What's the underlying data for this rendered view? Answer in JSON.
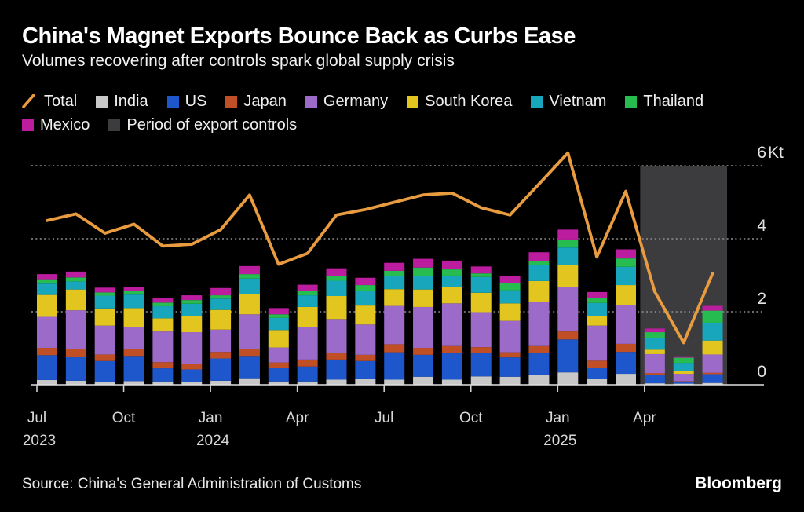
{
  "header": {
    "title": "China's Magnet Exports Bounce Back as Curbs Ease",
    "subtitle": "Volumes recovering after controls spark global supply crisis"
  },
  "legend": {
    "rows": [
      [
        {
          "label": "Total",
          "color": "#E99C3F",
          "swatch": "line"
        },
        {
          "label": "India",
          "color": "#C8C8C8",
          "swatch": "square"
        },
        {
          "label": "US",
          "color": "#1E56CB",
          "swatch": "square"
        },
        {
          "label": "Japan",
          "color": "#C14F26",
          "swatch": "square"
        },
        {
          "label": "Germany",
          "color": "#9C6BC9",
          "swatch": "square"
        },
        {
          "label": "South Korea",
          "color": "#E2C51E",
          "swatch": "square"
        },
        {
          "label": "Vietnam",
          "color": "#17A6BB",
          "swatch": "square"
        },
        {
          "label": "Thailand",
          "color": "#27BC4F",
          "swatch": "square"
        }
      ],
      [
        {
          "label": "Mexico",
          "color": "#BC1C9E",
          "swatch": "square"
        },
        {
          "label": "Period of export controls",
          "color": "#3C3C3E",
          "swatch": "square"
        }
      ]
    ]
  },
  "footer": {
    "source": "Source: China's General Administration of Customs",
    "brand": "Bloomberg"
  },
  "chart_data": {
    "type": "bar",
    "subtype": "stacked-bars-with-line",
    "unit": "Kt",
    "grid": "dashed-horizontal",
    "ylim": [
      0,
      6
    ],
    "categories": [
      "Jul 2023",
      "Aug 2023",
      "Sep 2023",
      "Oct 2023",
      "Nov 2023",
      "Dec 2023",
      "Jan 2024",
      "Feb 2024",
      "Mar 2024",
      "Apr 2024",
      "May 2024",
      "Jun 2024",
      "Jul 2024",
      "Aug 2024",
      "Sep 2024",
      "Oct 2024",
      "Nov 2024",
      "Dec 2024",
      "Jan 2025",
      "Feb 2025",
      "Mar 2025",
      "Apr 2025",
      "May 2025",
      "Jun 2025"
    ],
    "series": [
      {
        "name": "India",
        "color": "#C8C8C8",
        "values": [
          0.13,
          0.11,
          0.07,
          0.1,
          0.09,
          0.07,
          0.11,
          0.18,
          0.09,
          0.09,
          0.14,
          0.17,
          0.14,
          0.22,
          0.14,
          0.23,
          0.22,
          0.28,
          0.34,
          0.16,
          0.3,
          0.04,
          0.03,
          0.05
        ]
      },
      {
        "name": "US",
        "color": "#1E56CB",
        "values": [
          0.68,
          0.65,
          0.58,
          0.69,
          0.36,
          0.35,
          0.61,
          0.61,
          0.38,
          0.41,
          0.55,
          0.48,
          0.75,
          0.6,
          0.72,
          0.63,
          0.53,
          0.58,
          0.9,
          0.31,
          0.6,
          0.22,
          0.06,
          0.24
        ]
      },
      {
        "name": "Japan",
        "color": "#C14F26",
        "values": [
          0.2,
          0.22,
          0.18,
          0.19,
          0.17,
          0.16,
          0.18,
          0.18,
          0.14,
          0.19,
          0.17,
          0.17,
          0.22,
          0.19,
          0.22,
          0.17,
          0.14,
          0.22,
          0.22,
          0.19,
          0.22,
          0.06,
          0.01,
          0.04
        ]
      },
      {
        "name": "Germany",
        "color": "#9C6BC9",
        "values": [
          0.85,
          1.06,
          0.79,
          0.6,
          0.84,
          0.86,
          0.61,
          0.96,
          0.41,
          0.89,
          0.94,
          0.83,
          1.05,
          1.12,
          1.15,
          0.96,
          0.86,
          1.2,
          1.22,
          0.96,
          1.06,
          0.52,
          0.2,
          0.5
        ]
      },
      {
        "name": "South Korea",
        "color": "#E2C51E",
        "values": [
          0.6,
          0.57,
          0.47,
          0.52,
          0.36,
          0.45,
          0.54,
          0.55,
          0.48,
          0.55,
          0.63,
          0.52,
          0.46,
          0.48,
          0.45,
          0.53,
          0.48,
          0.56,
          0.6,
          0.27,
          0.55,
          0.12,
          0.08,
          0.38
        ]
      },
      {
        "name": "Vietnam",
        "color": "#17A6BB",
        "values": [
          0.31,
          0.22,
          0.35,
          0.37,
          0.33,
          0.33,
          0.31,
          0.43,
          0.33,
          0.32,
          0.42,
          0.4,
          0.36,
          0.36,
          0.31,
          0.43,
          0.36,
          0.43,
          0.48,
          0.35,
          0.5,
          0.33,
          0.22,
          0.49
        ]
      },
      {
        "name": "Thailand",
        "color": "#27BC4F",
        "values": [
          0.12,
          0.11,
          0.09,
          0.09,
          0.1,
          0.1,
          0.09,
          0.12,
          0.1,
          0.12,
          0.12,
          0.16,
          0.14,
          0.24,
          0.17,
          0.1,
          0.19,
          0.12,
          0.22,
          0.14,
          0.23,
          0.15,
          0.14,
          0.33
        ]
      },
      {
        "name": "Mexico",
        "color": "#BC1C9E",
        "values": [
          0.14,
          0.16,
          0.13,
          0.12,
          0.12,
          0.13,
          0.2,
          0.22,
          0.17,
          0.17,
          0.22,
          0.2,
          0.22,
          0.24,
          0.24,
          0.19,
          0.19,
          0.24,
          0.27,
          0.16,
          0.25,
          0.1,
          0.04,
          0.13
        ]
      }
    ],
    "line_series": {
      "name": "Total",
      "color": "#E99C3F",
      "values": [
        4.5,
        4.68,
        4.15,
        4.4,
        3.8,
        3.85,
        4.25,
        5.2,
        3.3,
        3.6,
        4.65,
        4.8,
        5.0,
        5.2,
        5.25,
        4.85,
        4.65,
        5.5,
        6.35,
        3.5,
        5.3,
        2.55,
        1.15,
        3.05
      ]
    },
    "yticks": [
      {
        "value": 0,
        "label": "0",
        "suffix": ""
      },
      {
        "value": 2,
        "label": "2",
        "suffix": ""
      },
      {
        "value": 4,
        "label": "4",
        "suffix": ""
      },
      {
        "value": 6,
        "label": "6",
        "suffix": "Kt"
      }
    ],
    "xticks": [
      {
        "index": 0,
        "label": "Jul",
        "year": "2023"
      },
      {
        "index": 3,
        "label": "Oct",
        "year": ""
      },
      {
        "index": 6,
        "label": "Jan",
        "year": "2024"
      },
      {
        "index": 9,
        "label": "Apr",
        "year": ""
      },
      {
        "index": 12,
        "label": "Jul",
        "year": ""
      },
      {
        "index": 15,
        "label": "Oct",
        "year": ""
      },
      {
        "index": 18,
        "label": "Jan",
        "year": "2025"
      },
      {
        "index": 21,
        "label": "Apr",
        "year": ""
      }
    ],
    "highlight_region": {
      "label": "Period of export controls",
      "start_index": 21,
      "end_index": 23,
      "top_value": 6,
      "color": "#3C3C3E"
    }
  }
}
